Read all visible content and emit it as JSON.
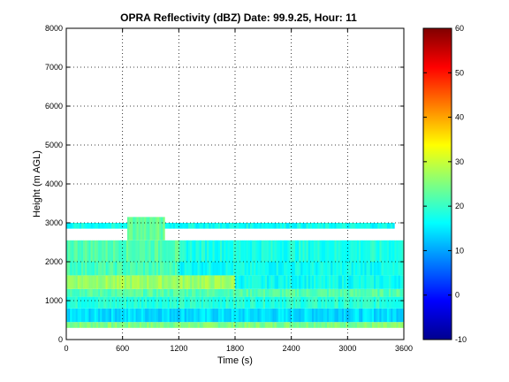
{
  "chart_data": {
    "type": "heatmap",
    "title": "OPRA Reflectivity (dBZ)  Date: 99.9.25, Hour: 11",
    "xlabel": "Time (s)",
    "ylabel": "Height (m AGL)",
    "xlim": [
      0,
      3600
    ],
    "ylim": [
      0,
      8000
    ],
    "xticks": [
      0,
      600,
      1200,
      1800,
      2400,
      3000,
      3600
    ],
    "yticks": [
      0,
      1000,
      2000,
      3000,
      4000,
      5000,
      6000,
      7000,
      8000
    ],
    "grid": true,
    "colorbar": {
      "min": -10,
      "max": 60,
      "ticks": [
        -10,
        0,
        10,
        20,
        30,
        40,
        50,
        60
      ],
      "colormap": "jet"
    },
    "layers": [
      {
        "height_range_m": [
          300,
          450
        ],
        "time_range_s": [
          0,
          3600
        ],
        "dbz": 25
      },
      {
        "height_range_m": [
          450,
          800
        ],
        "time_range_s": [
          0,
          3600
        ],
        "dbz": 14
      },
      {
        "height_range_m": [
          800,
          1100
        ],
        "time_range_s": [
          0,
          3600
        ],
        "dbz": 19
      },
      {
        "height_range_m": [
          1100,
          1300
        ],
        "time_range_s": [
          0,
          3600
        ],
        "dbz": 22
      },
      {
        "height_range_m": [
          1300,
          1650
        ],
        "time_range_s": [
          0,
          1800
        ],
        "dbz": 27
      },
      {
        "height_range_m": [
          1300,
          1650
        ],
        "time_range_s": [
          1800,
          3600
        ],
        "dbz": 17
      },
      {
        "height_range_m": [
          1650,
          2000
        ],
        "time_range_s": [
          0,
          1200
        ],
        "dbz": 21
      },
      {
        "height_range_m": [
          1650,
          2000
        ],
        "time_range_s": [
          1200,
          3600
        ],
        "dbz": 17
      },
      {
        "height_range_m": [
          2000,
          2550
        ],
        "time_range_s": [
          0,
          1200
        ],
        "dbz": 22
      },
      {
        "height_range_m": [
          2000,
          2550
        ],
        "time_range_s": [
          1200,
          3600
        ],
        "dbz": 18
      },
      {
        "height_range_m": [
          2850,
          3000
        ],
        "time_range_s": [
          0,
          3500
        ],
        "dbz": 17
      },
      {
        "height_range_m": [
          2550,
          3150
        ],
        "time_range_s": [
          650,
          1050
        ],
        "dbz": 23
      }
    ]
  }
}
